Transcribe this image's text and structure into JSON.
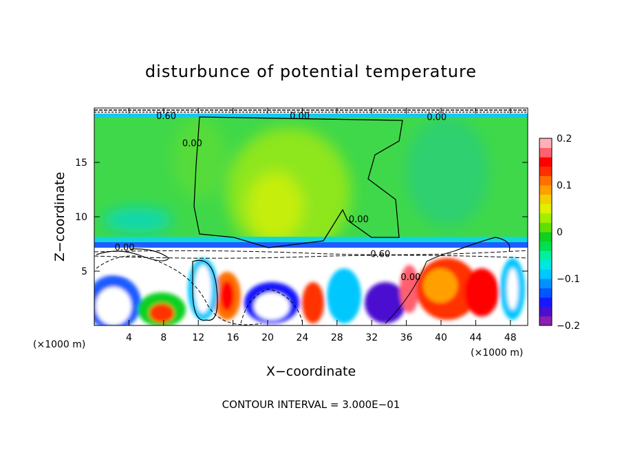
{
  "chart_data": {
    "type": "heatmap",
    "title": "disturbunce of potential temperature",
    "xlabel": "X−coordinate",
    "ylabel": "Z−coordinate",
    "x_unit_left": "(×1000 m)",
    "x_unit_right": "(×1000 m)",
    "xlim": [
      0,
      50
    ],
    "ylim": [
      0,
      20
    ],
    "x_ticks": [
      4,
      8,
      12,
      16,
      20,
      24,
      28,
      32,
      36,
      40,
      44,
      48
    ],
    "y_ticks": [
      5,
      10,
      15
    ],
    "colorbar": {
      "range": [
        -0.2,
        0.2
      ],
      "tick_values": [
        0.2,
        0.1,
        0,
        -0.1,
        -0.2
      ],
      "tick_labels": [
        "0.2",
        "0.1",
        "0",
        "−0.1",
        "−0.2"
      ],
      "colors": [
        "#8a1fb0",
        "#4b0fd0",
        "#1818ff",
        "#0055ff",
        "#0090ff",
        "#00c8ff",
        "#00e6e0",
        "#00f0a0",
        "#00e050",
        "#10d020",
        "#60e000",
        "#a0ee00",
        "#e0f000",
        "#f0d000",
        "#ffa000",
        "#ff7000",
        "#ff3000",
        "#ff0000",
        "#ff6070",
        "#ffb0b8"
      ]
    },
    "contour_labels": [
      {
        "text": "0.00",
        "x": 23.7,
        "z": 19.3
      },
      {
        "text": "0.00",
        "x": 11.3,
        "z": 16.8
      },
      {
        "text": "0.00",
        "x": 30.5,
        "z": 9.8
      },
      {
        "text": "0.00",
        "x": 3.5,
        "z": 7.2
      },
      {
        "text": "0.60",
        "x": 33.0,
        "z": 6.6
      },
      {
        "text": "0.00",
        "x": 36.5,
        "z": 4.5
      },
      {
        "text": "0.00",
        "x": 39.5,
        "z": 19.2
      },
      {
        "text": "0.60",
        "x": 8.3,
        "z": 19.3
      }
    ],
    "footnote": "CONTOUR INTERVAL = 3.000E−01"
  }
}
